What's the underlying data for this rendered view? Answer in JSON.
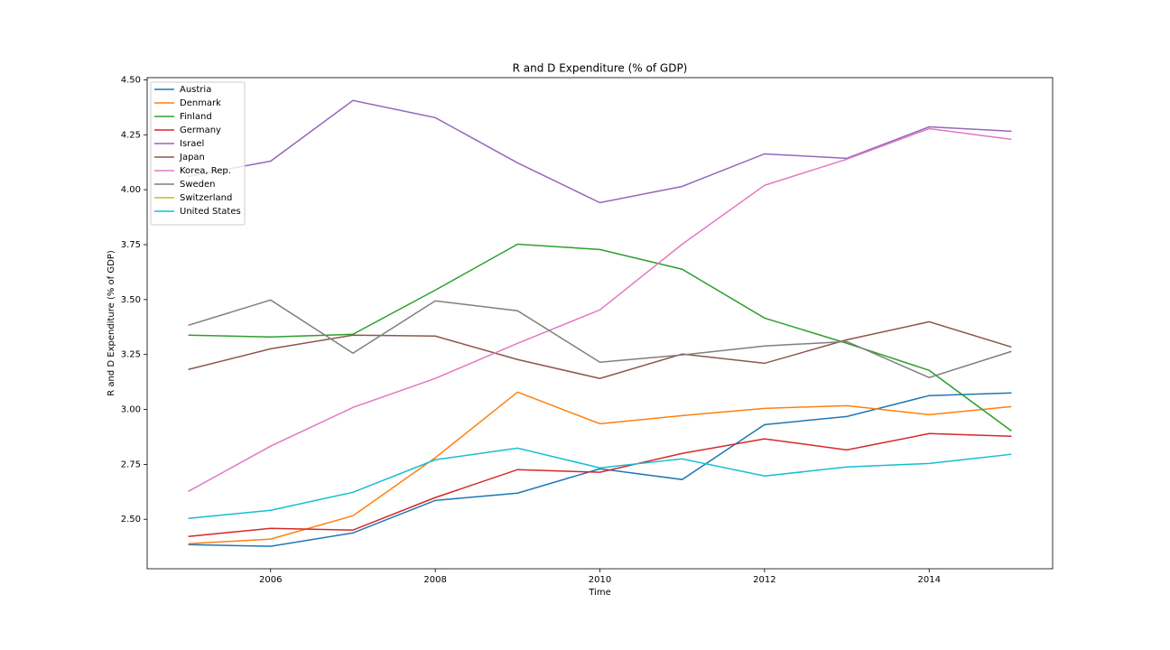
{
  "chart_data": {
    "type": "line",
    "title": "R and D Expenditure (% of GDP)",
    "x_label": "Time",
    "y_label": "R and D Expenditure (% of GDP)",
    "x": [
      2005,
      2006,
      2007,
      2008,
      2009,
      2010,
      2011,
      2012,
      2013,
      2014,
      2015
    ],
    "xlim": [
      2004.5,
      2015.5
    ],
    "xticks": [
      2006,
      2008,
      2010,
      2012,
      2014
    ],
    "ylim": [
      2.275,
      4.51
    ],
    "yticks": [
      {
        "value": 2.5,
        "label": "2.50"
      },
      2.75,
      {
        "value": 3,
        "label": "3.00"
      },
      3.25,
      {
        "value": 3.5,
        "label": "3.50"
      },
      3.75,
      {
        "value": 4,
        "label": "4.00"
      },
      4.25,
      {
        "value": 4.5,
        "label": "4.50"
      }
    ],
    "grid": false,
    "legend": "upper left",
    "series": [
      {
        "name": "Austria",
        "color": "#1f77b4",
        "values": [
          2.385,
          2.377,
          2.438,
          2.586,
          2.619,
          2.73,
          2.681,
          2.931,
          2.968,
          3.063,
          3.075
        ]
      },
      {
        "name": "Denmark",
        "color": "#ff7f0e",
        "values": [
          2.389,
          2.41,
          2.516,
          2.78,
          3.079,
          2.935,
          2.972,
          3.005,
          3.017,
          2.976,
          3.013
        ]
      },
      {
        "name": "Finland",
        "color": "#2ca02c",
        "values": [
          3.338,
          3.33,
          3.342,
          3.543,
          3.752,
          3.728,
          3.638,
          3.416,
          3.301,
          3.178,
          2.902
        ]
      },
      {
        "name": "Germany",
        "color": "#d62728",
        "values": [
          2.422,
          2.459,
          2.451,
          2.599,
          2.726,
          2.714,
          2.8,
          2.866,
          2.816,
          2.89,
          2.878
        ]
      },
      {
        "name": "Israel",
        "color": "#9467bd",
        "values": [
          4.06,
          4.13,
          4.406,
          4.328,
          4.122,
          3.941,
          4.015,
          4.163,
          4.143,
          4.286,
          4.266
        ]
      },
      {
        "name": "Japan",
        "color": "#8c564b",
        "values": [
          3.182,
          3.276,
          3.338,
          3.334,
          3.227,
          3.141,
          3.252,
          3.21,
          3.317,
          3.399,
          3.284
        ]
      },
      {
        "name": "Korea, Rep.",
        "color": "#e377c2",
        "values": [
          2.627,
          2.833,
          3.009,
          3.141,
          3.301,
          3.453,
          3.752,
          4.02,
          4.139,
          4.278,
          4.229
        ]
      },
      {
        "name": "Sweden",
        "color": "#7f7f7f",
        "values": [
          3.383,
          3.498,
          3.256,
          3.494,
          3.449,
          3.215,
          3.248,
          3.289,
          3.309,
          3.145,
          3.264
        ]
      },
      {
        "name": "Switzerland",
        "color": "#bcbd22",
        "values": [
          null,
          null,
          null,
          null,
          null,
          null,
          null,
          null,
          null,
          null,
          null
        ]
      },
      {
        "name": "United States",
        "color": "#17becf",
        "values": [
          2.504,
          2.541,
          2.623,
          2.771,
          2.824,
          2.734,
          2.775,
          2.697,
          2.738,
          2.754,
          2.796
        ]
      }
    ]
  }
}
